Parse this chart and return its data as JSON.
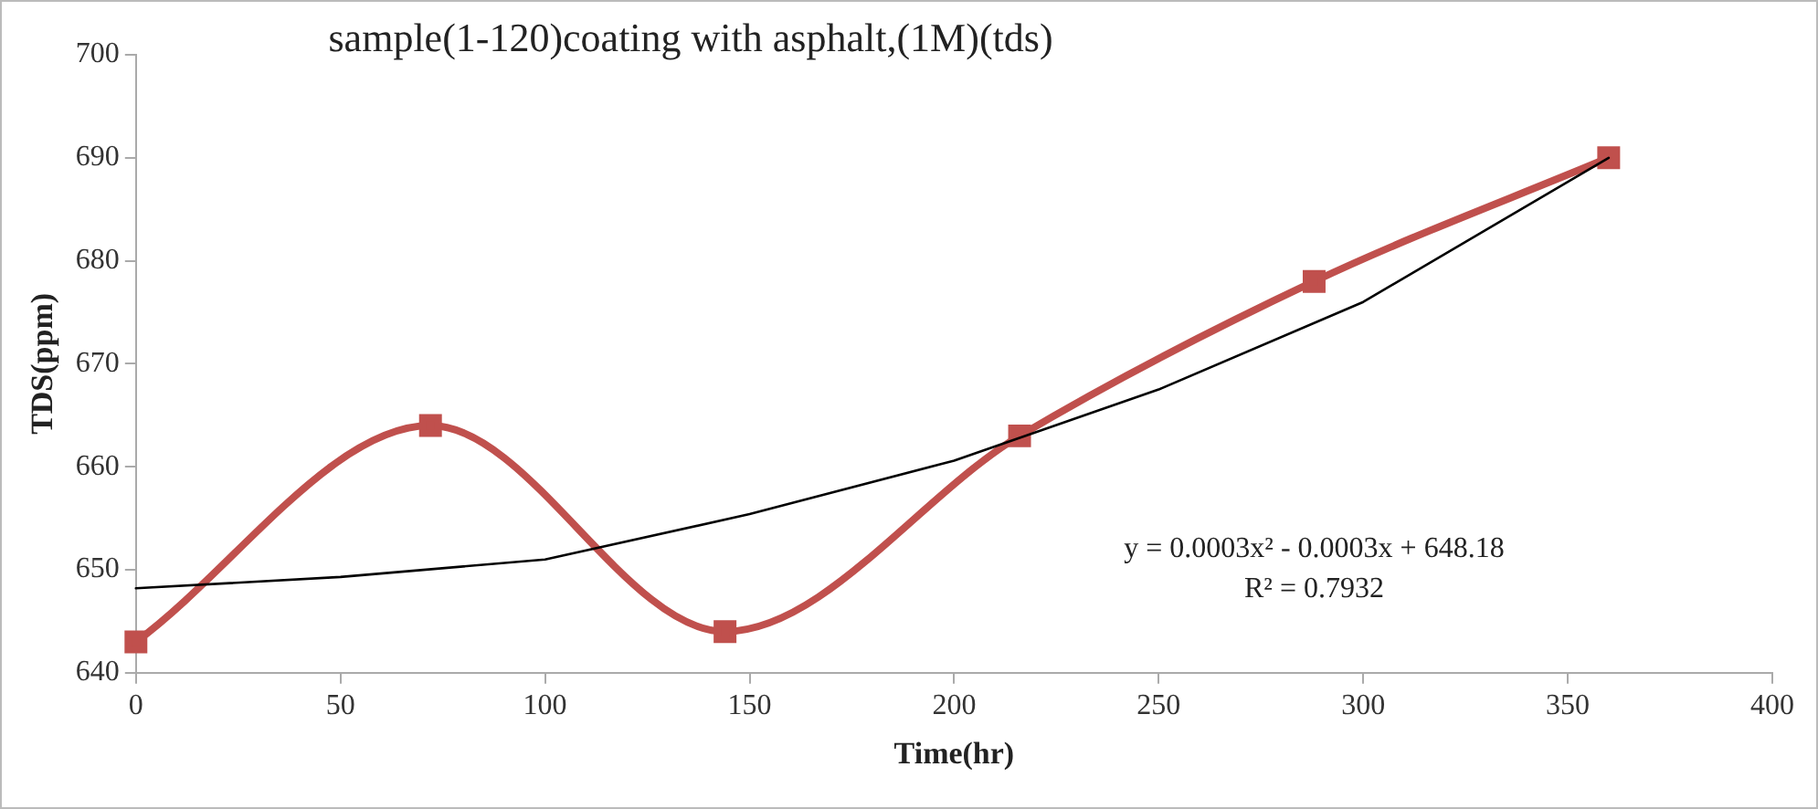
{
  "chart_data": {
    "type": "line",
    "title": "sample(1-120)coating with asphalt,(1M)(tds)",
    "xlabel": "Time(hr)",
    "ylabel": "TDS(ppm)",
    "x": [
      0,
      72,
      144,
      216,
      288,
      360
    ],
    "series": [
      {
        "color": "#c0504d",
        "values": [
          643,
          664,
          644,
          663,
          678,
          690
        ],
        "marker": "square"
      },
      {
        "type": "line",
        "color": "#000000",
        "x": [
          0,
          50,
          100,
          150,
          200,
          250,
          300,
          360
        ],
        "values": [
          648.2,
          649.3,
          651,
          655.4,
          660.6,
          667.5,
          676,
          690
        ],
        "marker": "none"
      }
    ],
    "xlim": [
      0,
      400
    ],
    "xticks": [
      0,
      50,
      100,
      150,
      200,
      250,
      300,
      350,
      400
    ],
    "ylim": [
      640,
      700
    ],
    "yticks": [
      640,
      650,
      660,
      670,
      680,
      690,
      700
    ],
    "grid": false,
    "legend": false,
    "annotations": [
      "y = 0.0003x² - 0.0003x + 648.18",
      "R² = 0.7932"
    ]
  }
}
